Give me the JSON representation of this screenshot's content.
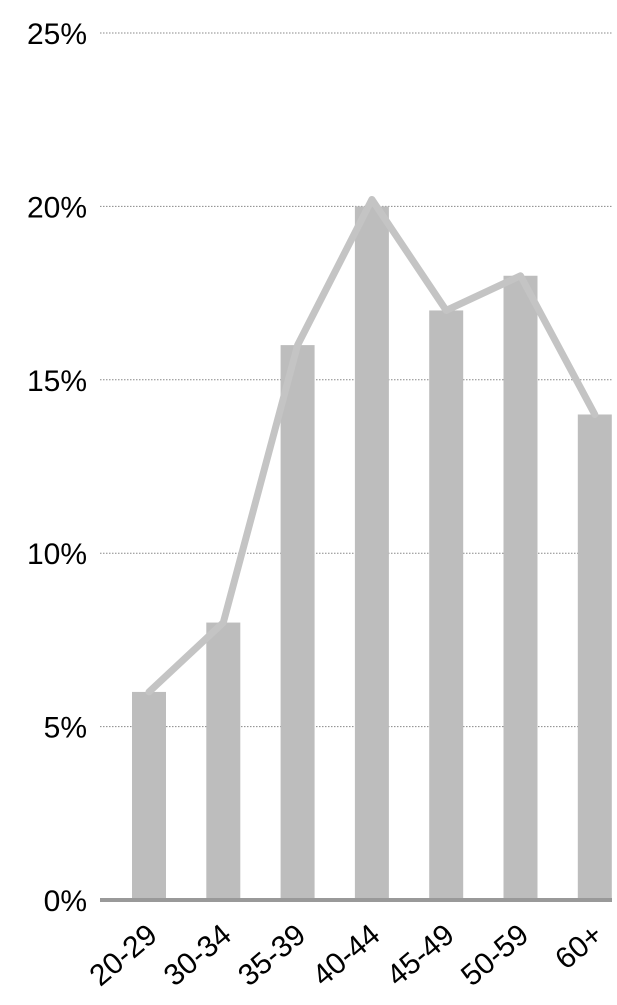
{
  "chart_data": {
    "type": "bar",
    "title": "",
    "xlabel": "",
    "ylabel": "",
    "categories": [
      "20-29",
      "30-34",
      "35-39",
      "40-44",
      "45-49",
      "50-59",
      "60+"
    ],
    "series": [
      {
        "type": "bar",
        "values": [
          6,
          8,
          16,
          20,
          17,
          18,
          14
        ]
      },
      {
        "type": "line",
        "values": [
          6,
          8,
          16,
          20.2,
          17,
          18,
          14
        ]
      }
    ],
    "ylim": [
      0,
      25
    ],
    "yticks": [
      0,
      5,
      10,
      15,
      20,
      25
    ],
    "ytick_labels": [
      "0%",
      "5%",
      "10%",
      "15%",
      "20%",
      "25%"
    ],
    "grid": true,
    "grid_style": "dotted",
    "bar_color": "#bdbdbd",
    "line_color": "#c4c4c4",
    "axis_color": "#999999",
    "grid_color": "#888888"
  }
}
